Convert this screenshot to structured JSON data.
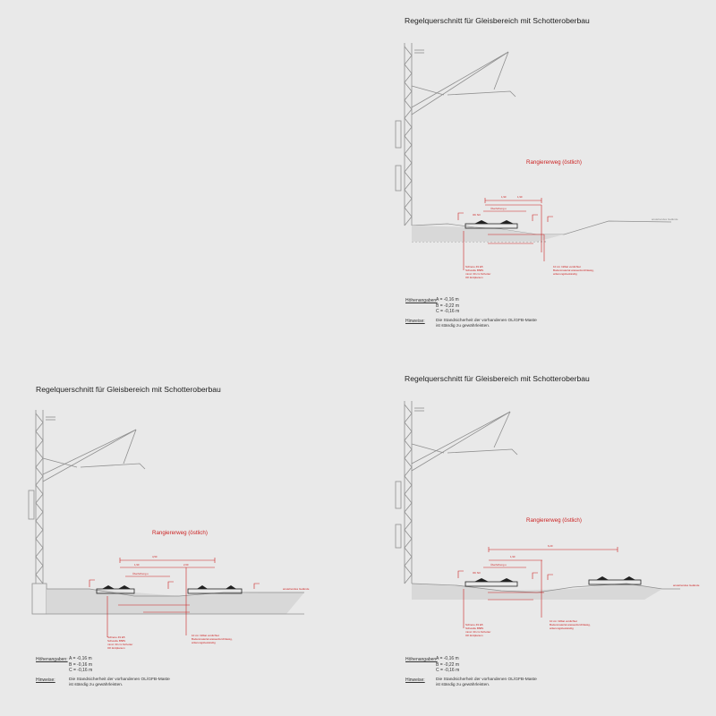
{
  "colors": {
    "background": "#e9e9e9",
    "line": "#8f8f8f",
    "annotation": "#cc2222",
    "text": "#222222"
  },
  "panels": {
    "top_right": {
      "title": "Regelquerschnitt für Gleisbereich mit Schotteroberbau",
      "route_label": "Rangiererweg (östlich)",
      "heights_label": "Höhenangaben:",
      "heights": [
        "A = -0,16 m",
        "B = -0,22 m",
        "C = -0,16 m"
      ],
      "notes_label": "Hinweise:",
      "notes": [
        "Die Standsicherheit der vorhandenen OL/GFB-Maste",
        "ist ständig zu gewährleisten."
      ],
      "legend": [
        "Schiene 49 E5",
        "Schwelle B58S",
        "mind. 30 cm Schotter",
        "OK Erdplanum"
      ],
      "side_note": [
        "10 cm Infiltat verdichtet",
        "Bodenmaterial wasserdurchlässig,",
        "witterungsbeständig"
      ],
      "right_label": "anstehendes Gelände",
      "dims": [
        "1,90",
        "1,90",
        "Überhöhung u",
        "OK SO"
      ]
    },
    "bottom_left": {
      "title": "Regelquerschnitt für Gleisbereich mit Schotteroberbau",
      "route_label": "Rangiererweg (östlich)",
      "heights_label": "Höhenangaben:",
      "heights": [
        "A = -0,16 m",
        "B = -0,16 m",
        "C = -0,16 m"
      ],
      "notes_label": "Hinweise:",
      "notes": [
        "Die Standsicherheit der vorhandenen OL/GFB-Maste",
        "ist ständig zu gewährleisten."
      ],
      "legend": [
        "Schiene 49 E5",
        "Schwelle B58S",
        "mind. 30 cm Schotter",
        "OK Erdplanum"
      ],
      "side_note": [
        "10 cm Infiltat verdichtet",
        "Bodenmaterial wasserdurchlässig,",
        "witterungsbeständig"
      ],
      "right_label": "anstehendes Gelände",
      "dims": [
        "4,50",
        "1,90",
        "2,60",
        "Überhöhung u"
      ]
    },
    "bottom_right": {
      "title": "Regelquerschnitt für Gleisbereich mit Schotteroberbau",
      "route_label": "Rangiererweg (östlich)",
      "heights_label": "Höhenangaben:",
      "heights": [
        "A = -0,16 m",
        "B = -0,22 m",
        "C = -0,16 m"
      ],
      "notes_label": "Hinweise:",
      "notes": [
        "Die Standsicherheit der vorhandenen OL/GFB-Maste",
        "ist ständig zu gewährleisten."
      ],
      "legend": [
        "Schiene 49 E5",
        "Schwelle B58S",
        "mind. 30 cm Schotter",
        "OK Erdplanum"
      ],
      "side_note": [
        "10 cm Infiltat verdichtet",
        "Bodenmaterial wasserdurchlässig,",
        "witterungsbeständig"
      ],
      "right_label": "anstehendes Gelände",
      "dims": [
        "6,20",
        "1,90",
        "Überhöhung u",
        "OK SO"
      ]
    }
  }
}
